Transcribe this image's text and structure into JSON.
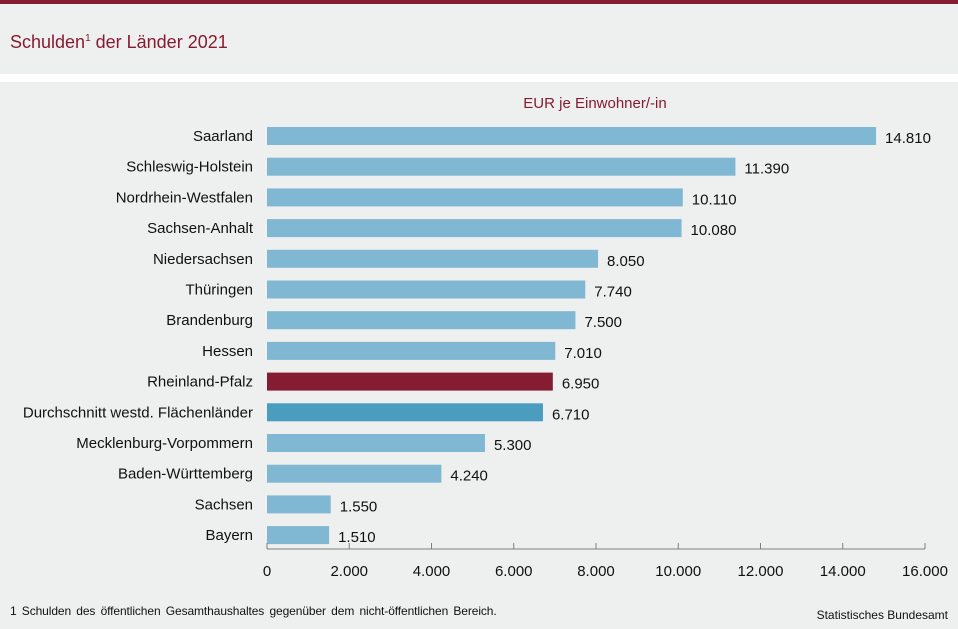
{
  "header": {
    "title_main": "Schulden",
    "title_sup": "1",
    "title_rest": " der Länder 2021"
  },
  "footer": {
    "footnote": "1 Schulden des öffentlichen Gesamthaushaltes gegenüber dem nicht-öffentlichen Bereich.",
    "source": "Statistisches Bundesamt"
  },
  "colors": {
    "brand": "#861c31",
    "bar_default": "#80b7d3",
    "bar_highlight": "#861c31",
    "bar_average": "#4b9dc0",
    "axis": "#7f7f7f",
    "text": "#111111"
  },
  "chart_data": {
    "type": "bar",
    "orientation": "horizontal",
    "title": "Schulden der Länder 2021",
    "unit_label": "EUR je Einwohner/-in",
    "xlabel": "",
    "ylabel": "",
    "xlim": [
      0,
      16000
    ],
    "xticks": [
      0,
      2000,
      4000,
      6000,
      8000,
      10000,
      12000,
      14000,
      16000
    ],
    "xtick_labels": [
      "0",
      "2.000",
      "4.000",
      "6.000",
      "8.000",
      "10.000",
      "12.000",
      "14.000",
      "16.000"
    ],
    "grid": false,
    "legend": "none",
    "categories": [
      "Saarland",
      "Schleswig-Holstein",
      "Nordrhein-Westfalen",
      "Sachsen-Anhalt",
      "Niedersachsen",
      "Thüringen",
      "Brandenburg",
      "Hessen",
      "Rheinland-Pfalz",
      "Durchschnitt westd. Flächenländer",
      "Mecklenburg-Vorpommern",
      "Baden-Württemberg",
      "Sachsen",
      "Bayern"
    ],
    "values": [
      14810,
      11390,
      10110,
      10080,
      8050,
      7740,
      7500,
      7010,
      6950,
      6710,
      5300,
      4240,
      1550,
      1510
    ],
    "value_labels": [
      "14.810",
      "11.390",
      "10.110",
      "10.080",
      "8.050",
      "7.740",
      "7.500",
      "7.010",
      "6.950",
      "6.710",
      "5.300",
      "4.240",
      "1.550",
      "1.510"
    ],
    "highlight": {
      "Rheinland-Pfalz": "highlight",
      "Durchschnitt westd. Flächenländer": "average"
    }
  }
}
